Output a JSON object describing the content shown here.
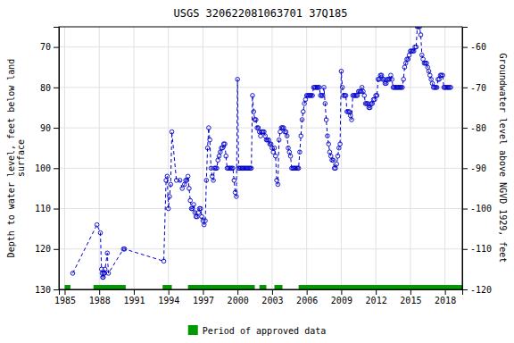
{
  "chart_data": {
    "type": "line",
    "title": "USGS 320622081063701 37Q185",
    "ylabel": "Depth to water level, feet below land\nsurface",
    "y2label": "Groundwater level above NGVD 1929, feet",
    "xlim": [
      1984.5,
      2019.5
    ],
    "xticks": [
      1985,
      1988,
      1991,
      1994,
      1997,
      2000,
      2003,
      2006,
      2009,
      2012,
      2015,
      2018
    ],
    "ylim": [
      130,
      65
    ],
    "yticks": [
      70,
      80,
      90,
      100,
      110,
      120,
      130
    ],
    "y2lim": [
      -120,
      -55
    ],
    "y2ticks": [
      -60,
      -70,
      -80,
      -90,
      -100,
      -110,
      -120
    ],
    "grid": true,
    "x": [
      1985.7,
      1987.8,
      1988.1,
      1988.2,
      1988.25,
      1988.3,
      1988.35,
      1988.4,
      1988.45,
      1988.5,
      1988.7,
      1988.8,
      1990.1,
      1990.2,
      1993.6,
      1993.8,
      1993.9,
      1994.0,
      1994.1,
      1994.2,
      1994.3,
      1994.7,
      1995.0,
      1995.2,
      1995.4,
      1995.5,
      1995.6,
      1995.7,
      1995.8,
      1995.9,
      1996.0,
      1996.1,
      1996.2,
      1996.3,
      1996.4,
      1996.5,
      1996.6,
      1996.7,
      1996.8,
      1996.9,
      1997.0,
      1997.1,
      1997.2,
      1997.3,
      1997.4,
      1997.5,
      1997.6,
      1997.7,
      1997.8,
      1997.9,
      1998.0,
      1998.1,
      1998.2,
      1998.3,
      1998.4,
      1998.5,
      1998.6,
      1998.7,
      1998.8,
      1998.9,
      1999.0,
      1999.1,
      1999.2,
      1999.3,
      1999.4,
      1999.5,
      1999.6,
      1999.7,
      1999.8,
      1999.9,
      2000.0,
      2000.1,
      2000.2,
      2000.3,
      2000.4,
      2000.5,
      2000.6,
      2000.7,
      2000.8,
      2000.9,
      2001.0,
      2001.1,
      2001.2,
      2001.3,
      2001.4,
      2001.5,
      2001.6,
      2001.7,
      2001.8,
      2001.9,
      2002.0,
      2002.1,
      2002.2,
      2002.3,
      2002.4,
      2002.5,
      2002.6,
      2002.7,
      2002.8,
      2002.9,
      2003.0,
      2003.1,
      2003.2,
      2003.3,
      2003.4,
      2003.5,
      2003.6,
      2003.7,
      2003.8,
      2003.9,
      2004.0,
      2004.1,
      2004.2,
      2004.3,
      2004.4,
      2004.5,
      2004.6,
      2004.7,
      2004.8,
      2004.9,
      2005.0,
      2005.1,
      2005.2,
      2005.3,
      2005.4,
      2005.5,
      2005.6,
      2005.7,
      2005.8,
      2005.9,
      2006.0,
      2006.1,
      2006.2,
      2006.3,
      2006.4,
      2006.5,
      2006.6,
      2006.7,
      2006.8,
      2006.9,
      2007.0,
      2007.1,
      2007.2,
      2007.3,
      2007.4,
      2007.5,
      2007.6,
      2007.7,
      2007.8,
      2007.9,
      2008.0,
      2008.1,
      2008.2,
      2008.3,
      2008.4,
      2008.5,
      2008.6,
      2008.7,
      2008.8,
      2008.9,
      2009.0,
      2009.1,
      2009.2,
      2009.3,
      2009.4,
      2009.5,
      2009.6,
      2009.7,
      2009.8,
      2009.9,
      2010.0,
      2010.1,
      2010.2,
      2010.3,
      2010.4,
      2010.5,
      2010.6,
      2010.7,
      2010.8,
      2010.9,
      2011.0,
      2011.1,
      2011.2,
      2011.3,
      2011.4,
      2011.5,
      2011.6,
      2011.7,
      2011.8,
      2011.9,
      2012.0,
      2012.1,
      2012.2,
      2012.3,
      2012.4,
      2012.5,
      2012.6,
      2012.7,
      2012.8,
      2012.9,
      2013.0,
      2013.1,
      2013.2,
      2013.3,
      2013.4,
      2013.5,
      2013.6,
      2013.7,
      2013.8,
      2013.9,
      2014.0,
      2014.1,
      2014.2,
      2014.3,
      2014.4,
      2014.5,
      2014.6,
      2014.7,
      2014.8,
      2014.9,
      2015.0,
      2015.1,
      2015.2,
      2015.3,
      2015.4,
      2015.5,
      2015.6,
      2015.7,
      2015.8,
      2015.9,
      2016.0,
      2016.1,
      2016.2,
      2016.3,
      2016.4,
      2016.5,
      2016.6,
      2016.7,
      2016.8,
      2016.9,
      2017.0,
      2017.1,
      2017.2,
      2017.3,
      2017.4,
      2017.5,
      2017.6,
      2017.7,
      2017.8,
      2017.9,
      2018.0,
      2018.1,
      2018.2,
      2018.3,
      2018.4,
      2018.5
    ],
    "series": [
      {
        "color": "#0000cc",
        "marker": "circle",
        "line_style": "dashed",
        "values": [
          126,
          114,
          116,
          125,
          126,
          127,
          127,
          126,
          126,
          125,
          121,
          126,
          120,
          120,
          123,
          103,
          102,
          110,
          107,
          104,
          91,
          103,
          103,
          105,
          104,
          103,
          103,
          102,
          105,
          108,
          110,
          110,
          109,
          111,
          112,
          112,
          111,
          110,
          110,
          112,
          113,
          114,
          113,
          103,
          95,
          90,
          93,
          100,
          102,
          103,
          100,
          100,
          100,
          98,
          97,
          96,
          95,
          95,
          94,
          94,
          97,
          100,
          100,
          100,
          100,
          100,
          100,
          103,
          106,
          107,
          78,
          100,
          100,
          100,
          100,
          100,
          100,
          100,
          100,
          100,
          100,
          100,
          100,
          82,
          86,
          88,
          88,
          90,
          90,
          91,
          92,
          91,
          91,
          91,
          92,
          93,
          93,
          93,
          94,
          94,
          95,
          96,
          95,
          97,
          103,
          104,
          93,
          91,
          90,
          90,
          90,
          91,
          91,
          92,
          95,
          96,
          97,
          100,
          100,
          100,
          100,
          100,
          100,
          100,
          96,
          92,
          88,
          86,
          84,
          83,
          82,
          82,
          82,
          82,
          82,
          82,
          80,
          80,
          80,
          80,
          80,
          80,
          82,
          82,
          82,
          80,
          84,
          88,
          92,
          94,
          96,
          97,
          98,
          98,
          100,
          100,
          99,
          97,
          95,
          94,
          76,
          80,
          82,
          82,
          82,
          86,
          86,
          86,
          87,
          88,
          82,
          82,
          82,
          82,
          82,
          81,
          81,
          81,
          80,
          81,
          82,
          84,
          84,
          84,
          85,
          85,
          84,
          84,
          83,
          83,
          82,
          82,
          78,
          78,
          77,
          77,
          78,
          78,
          79,
          79,
          78,
          78,
          78,
          77,
          78,
          80,
          80,
          80,
          80,
          80,
          80,
          80,
          80,
          80,
          78,
          75,
          74,
          73,
          73,
          72,
          71,
          71,
          71,
          71,
          70,
          70,
          65,
          65,
          65,
          67,
          72,
          73,
          74,
          74,
          74,
          75,
          76,
          77,
          78,
          79,
          80,
          80,
          80,
          80,
          78,
          78,
          77,
          77,
          77,
          80,
          80,
          80,
          80,
          80,
          80,
          80
        ]
      }
    ],
    "approved_periods": {
      "name": "Period of approved data",
      "color": "#009900",
      "periods": [
        [
          1985.0,
          1985.5
        ],
        [
          1987.5,
          1990.3
        ],
        [
          1993.5,
          1994.3
        ],
        [
          1995.7,
          2001.5
        ],
        [
          2001.9,
          2002.5
        ],
        [
          2003.2,
          2003.9
        ],
        [
          2005.3,
          2019.5
        ]
      ]
    }
  }
}
